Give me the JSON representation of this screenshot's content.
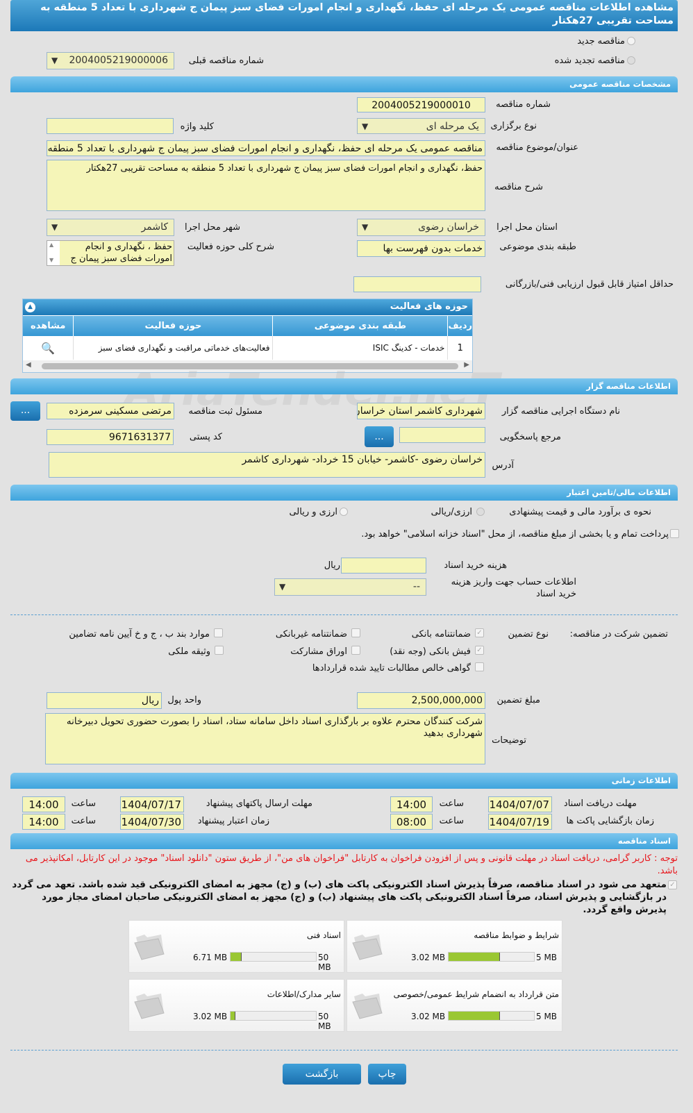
{
  "title": "مشاهده اطلاعات مناقصه عمومی یک مرحله ای حفظ، نگهداری و انجام امورات فضای سبز پیمان ج شهرداری با تعداد 5 منطقه به مساحت تقریبی 27هکتار",
  "tender_type": {
    "new": "مناقصه جدید",
    "renewed": "مناقصه تجدید شده",
    "prev_label": "شماره مناقصه قبلی",
    "prev_value": "2004005219000006"
  },
  "general": {
    "header": "مشخصات مناقصه عمومی",
    "number_label": "شماره مناقصه",
    "number": "2004005219000010",
    "holding_label": "نوع برگزاری",
    "holding": "یک مرحله ای",
    "keyword_label": "کلید واژه",
    "keyword": "",
    "subject_label": "عنوان/موضوع مناقصه",
    "subject": "مناقصه عمومی یک مرحله ای حفظ، نگهداری و انجام امورات فضای سبز پیمان ج شهرداری با تعداد 5 منطقه به مساحت تقریبی 27هکتار",
    "desc_label": "شرح مناقصه",
    "desc": "حفظ، نگهداری و انجام امورات فضای سبز پیمان ج شهرداری با تعداد 5 منطقه به مساحت تقریبی 27هکتار",
    "province_label": "استان محل اجرا",
    "province": "خراسان رضوی",
    "city_label": "شهر محل اجرا",
    "city": "کاشمر",
    "category_label": "طبقه بندی موضوعی",
    "category": "خدمات بدون فهرست بها",
    "activity_label": "شرح کلی حوزه فعالیت",
    "activity": "حفظ ، نگهداری و انجام امورات فضای سبز پیمان ج",
    "min_score_label": "حداقل امتیاز قابل قبول ارزیابی فنی/بازرگانی",
    "min_score": ""
  },
  "grid": {
    "title": "حوزه های فعالیت",
    "columns": [
      "ردیف",
      "طبقه بندی موضوعی",
      "حوزه فعالیت",
      "مشاهده"
    ],
    "rows": [
      {
        "n": "1",
        "cat": "خدمات - کدینگ ISIC",
        "area": "فعالیت‌های خدماتی مراقبت و نگهداری فضای سبز"
      }
    ]
  },
  "watermark": "AriaTender.neT",
  "organizer": {
    "header": "اطلاعات مناقصه گزار",
    "org_label": "نام دستگاه اجرایی مناقصه گزار",
    "org": "شهرداری کاشمر استان خراسان رضوی",
    "resp_label": "مسئول ثبت مناقصه",
    "resp": "مرتضی مسکینی سرمزده",
    "ref_label": "مرجع پاسخگویی",
    "ref": "",
    "postal_label": "کد پستی",
    "postal": "9671631377",
    "address_label": "آدرس",
    "address": "خراسان رضوی -کاشمر- خیابان 15 خرداد- شهرداری کاشمر",
    "more": "..."
  },
  "finance": {
    "header": "اطلاعات مالی/تامین اعتبار",
    "estimate_label": "نحوه ی برآورد مالی و قیمت پیشنهادی",
    "opt1": "ارزی/ریالی",
    "opt2": "ارزی و ریالی",
    "treasury": "پرداخت تمام و یا بخشی از مبلغ مناقصه، از محل \"اسناد خزانه اسلامی\" خواهد بود.",
    "doc_fee_label": "هزینه خرید اسناد",
    "doc_fee": "",
    "rial": "ریال",
    "account_label": "اطلاعات حساب جهت واریز هزینه خرید اسناد",
    "account": "--"
  },
  "guarantee": {
    "label": "تضمین شرکت در مناقصه:",
    "type_label": "نوع تضمین",
    "options": [
      {
        "label": "ضمانتنامه بانکی",
        "checked": true
      },
      {
        "label": "ضمانتنامه غیربانکی",
        "checked": false
      },
      {
        "label": "موارد بند ب ، ج و خ آیین نامه تضامین",
        "checked": false
      },
      {
        "label": "فیش بانکی (وجه نقد)",
        "checked": true
      },
      {
        "label": "اوراق مشارکت",
        "checked": false
      },
      {
        "label": "وثیقه ملکی",
        "checked": false
      },
      {
        "label": "گواهی خالص مطالبات تایید شده قراردادها",
        "checked": false
      }
    ],
    "amount_label": "مبلغ تضمین",
    "amount": "2,500,000,000",
    "currency_label": "واحد پول",
    "currency": "ریال",
    "notes_label": "توضیحات",
    "notes": "شرکت کنندگان محترم علاوه بر بارگذاری اسناد داخل سامانه ستاد، اسناد را بصورت حضوری تحویل دبیرخانه شهرداری بدهید"
  },
  "timing": {
    "header": "اطلاعات زمانی",
    "hour": "ساعت",
    "doc_receive_label": "مهلت دریافت اسناد",
    "doc_receive_date": "1404/07/07",
    "doc_receive_time": "14:00",
    "submit_label": "مهلت ارسال پاکتهای پیشنهاد",
    "submit_date": "1404/07/17",
    "submit_time": "14:00",
    "open_label": "زمان بازگشایی پاکت ها",
    "open_date": "1404/07/19",
    "open_time": "08:00",
    "validity_label": "زمان اعتبار پیشنهاد",
    "validity_date": "1404/07/30",
    "validity_time": "14:00"
  },
  "documents": {
    "header": "اسناد مناقصه",
    "notice": "توجه : کاربر گرامی، دریافت اسناد در مهلت قانونی و پس از افزودن فراخوان به کارتابل \"فراخوان های من\"، از طریق ستون \"دانلود اسناد\" موجود در این کارتابل، امکانپذیر می باشد.",
    "commitment": "متعهد می شود در اسناد مناقصه، صرفاً پذیرش اسناد الکترونیکی پاکت های (ب) و (ج) مجهز به امضای الکترونیکی قید شده باشد. تعهد می گردد در بازگشایی و پذیرش اسناد، صرفاً اسناد الکترونیکی پاکت های پیشنهاد (ب) و (ج) مجهز به امضای الکترونیکی صاحبان امضای مجاز مورد پذیرش واقع گردد.",
    "files": [
      {
        "name": "شرایط و ضوابط مناقصه",
        "used": "3.02 MB",
        "max": "5 MB",
        "percent": 60.4
      },
      {
        "name": "اسناد فنی",
        "used": "6.71 MB",
        "max": "50 MB",
        "percent": 13.4
      },
      {
        "name": "متن قرارداد به انضمام شرایط عمومی/خصوصی",
        "used": "3.02 MB",
        "max": "5 MB",
        "percent": 60.4
      },
      {
        "name": "سایر مدارک/اطلاعات",
        "used": "3.02 MB",
        "max": "50 MB",
        "percent": 6
      }
    ]
  },
  "actions": {
    "print": "چاپ",
    "back": "بازگشت"
  }
}
